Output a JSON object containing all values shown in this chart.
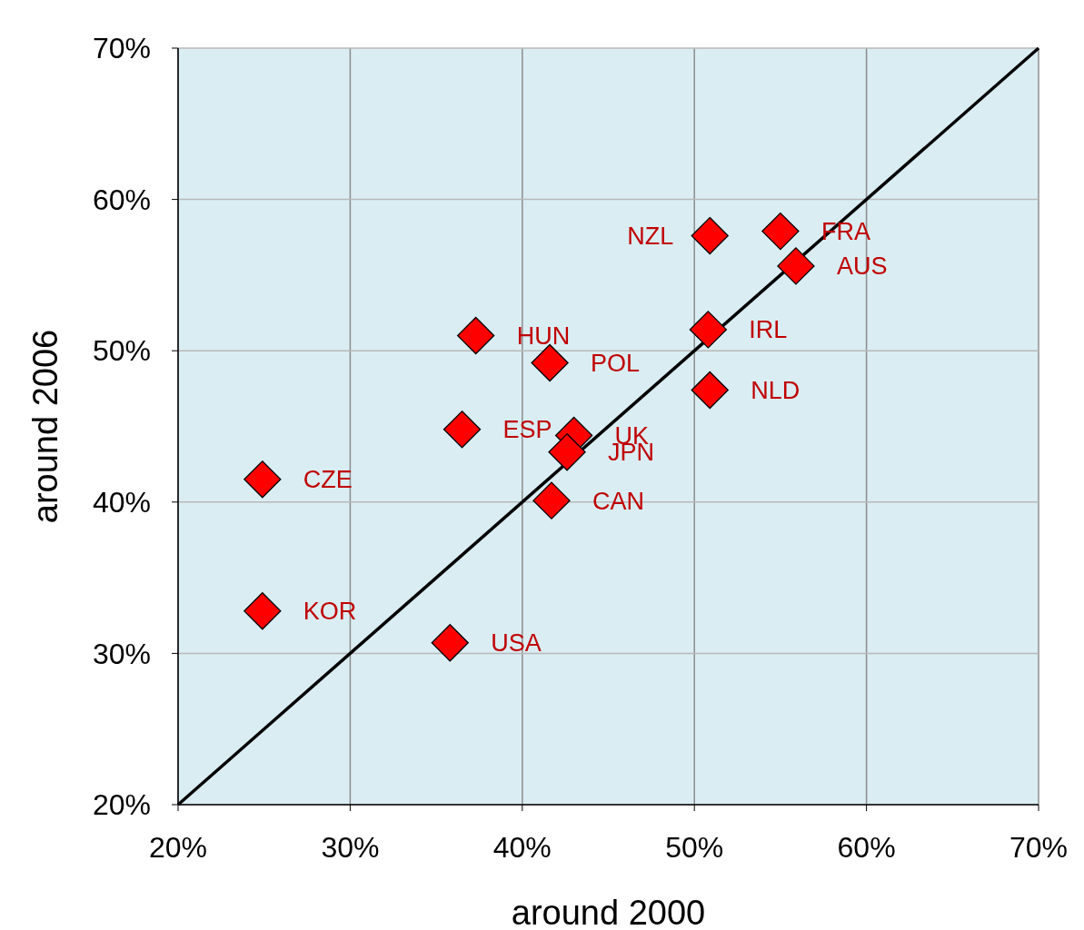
{
  "chart_data": {
    "type": "scatter",
    "xlabel": "around 2000",
    "ylabel": "around 2006",
    "xlim": [
      20,
      70
    ],
    "ylim": [
      20,
      70
    ],
    "xticks": [
      {
        "value": 20,
        "label": "20%"
      },
      {
        "value": 30,
        "label": "30%"
      },
      {
        "value": 40,
        "label": "40%"
      },
      {
        "value": 50,
        "label": "50%"
      },
      {
        "value": 60,
        "label": "60%"
      },
      {
        "value": 70,
        "label": "70%"
      }
    ],
    "yticks": [
      {
        "value": 20,
        "label": "20%"
      },
      {
        "value": 30,
        "label": "30%"
      },
      {
        "value": 40,
        "label": "40%"
      },
      {
        "value": 50,
        "label": "50%"
      },
      {
        "value": 60,
        "label": "60%"
      },
      {
        "value": 70,
        "label": "70%"
      }
    ],
    "grid": true,
    "marker": "diamond",
    "series": [
      {
        "color": "#ff0000",
        "x": [
          50.9,
          55.0,
          55.9,
          50.8,
          50.9,
          37.3,
          41.6,
          36.5,
          43.0,
          42.6,
          41.7,
          24.9,
          24.9,
          35.8
        ],
        "values": [
          57.6,
          57.9,
          55.6,
          51.4,
          47.4,
          51.0,
          49.2,
          44.8,
          44.4,
          43.3,
          40.1,
          41.5,
          32.8,
          30.7
        ]
      },
      {
        "type": "line",
        "color": "#000000",
        "marker": "none",
        "x": [
          20,
          70
        ],
        "values": [
          20,
          70
        ]
      }
    ],
    "annotations": [
      {
        "text": "NZL",
        "x": 50.9,
        "y": 57.6
      },
      {
        "text": "FRA",
        "x": 55.0,
        "y": 57.9
      },
      {
        "text": "AUS",
        "x": 55.9,
        "y": 55.6
      },
      {
        "text": "IRL",
        "x": 50.8,
        "y": 51.4
      },
      {
        "text": "NLD",
        "x": 50.9,
        "y": 47.4
      },
      {
        "text": "HUN",
        "x": 37.3,
        "y": 51.0
      },
      {
        "text": "POL",
        "x": 41.6,
        "y": 49.2
      },
      {
        "text": "ESP",
        "x": 36.5,
        "y": 44.8
      },
      {
        "text": "UK",
        "x": 43.0,
        "y": 44.4
      },
      {
        "text": "JPN",
        "x": 42.6,
        "y": 43.3
      },
      {
        "text": "CAN",
        "x": 41.7,
        "y": 40.1
      },
      {
        "text": "CZE",
        "x": 24.9,
        "y": 41.5
      },
      {
        "text": "KOR",
        "x": 24.9,
        "y": 32.8
      },
      {
        "text": "USA",
        "x": 35.8,
        "y": 30.7
      }
    ]
  }
}
